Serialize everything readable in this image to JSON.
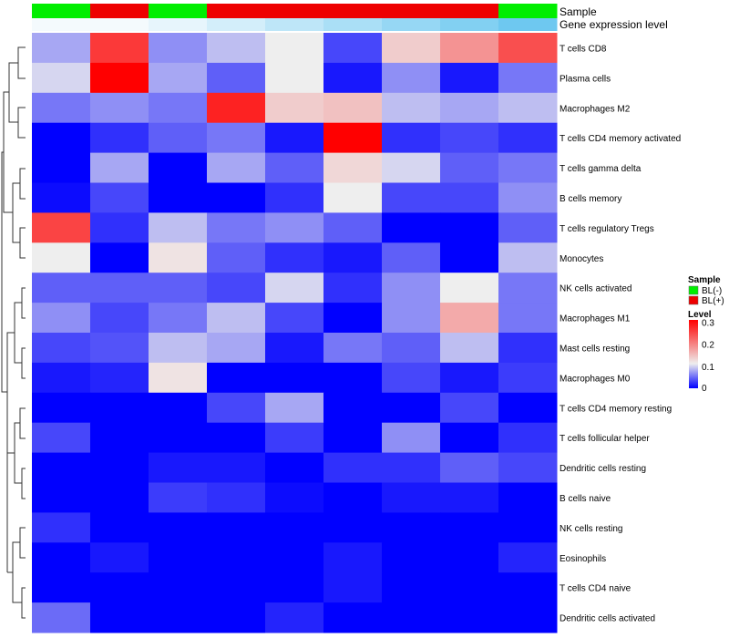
{
  "chart_data": {
    "type": "heatmap",
    "title": "",
    "row_labels": [
      "T cells CD8",
      "Plasma cells",
      "Macrophages M2",
      "T cells CD4 memory activated",
      "T cells gamma delta",
      "B cells memory",
      "T cells regulatory  Tregs",
      "Monocytes",
      "NK cells activated",
      "Macrophages M1",
      "Mast cells resting",
      "Macrophages M0",
      "T cells CD4 memory resting",
      "T cells follicular helper",
      "Dendritic cells resting",
      "B cells naive",
      "NK cells resting",
      "Eosinophils",
      "T cells CD4 naive",
      "Dendritic cells activated"
    ],
    "column_count": 9,
    "values": [
      [
        0.07,
        0.26,
        0.06,
        0.08,
        0.1,
        0.03,
        0.13,
        0.18,
        0.24
      ],
      [
        0.09,
        0.31,
        0.07,
        0.04,
        0.1,
        0.01,
        0.06,
        0.01,
        0.05
      ],
      [
        0.05,
        0.06,
        0.05,
        0.28,
        0.13,
        0.14,
        0.08,
        0.07,
        0.08
      ],
      [
        0.0,
        0.02,
        0.04,
        0.05,
        0.01,
        0.31,
        0.02,
        0.03,
        0.02
      ],
      [
        0.0,
        0.07,
        0.0,
        0.07,
        0.04,
        0.12,
        0.09,
        0.04,
        0.05
      ],
      [
        0.005,
        0.03,
        0.0,
        0.0,
        0.02,
        0.1,
        0.03,
        0.03,
        0.06
      ],
      [
        0.25,
        0.02,
        0.08,
        0.05,
        0.06,
        0.04,
        0.0,
        0.0,
        0.04
      ],
      [
        0.1,
        0.0,
        0.11,
        0.04,
        0.02,
        0.01,
        0.04,
        0.0,
        0.08
      ],
      [
        0.04,
        0.04,
        0.04,
        0.03,
        0.09,
        0.02,
        0.06,
        0.1,
        0.05
      ],
      [
        0.06,
        0.03,
        0.05,
        0.08,
        0.03,
        0.0,
        0.06,
        0.16,
        0.05
      ],
      [
        0.03,
        0.035,
        0.08,
        0.07,
        0.01,
        0.05,
        0.04,
        0.08,
        0.02
      ],
      [
        0.01,
        0.015,
        0.11,
        0.0,
        0.0,
        0.0,
        0.03,
        0.01,
        0.025
      ],
      [
        0.0,
        0.0,
        0.0,
        0.03,
        0.07,
        0.0,
        0.0,
        0.03,
        0.0
      ],
      [
        0.03,
        0.0,
        0.0,
        0.0,
        0.025,
        0.0,
        0.06,
        0.0,
        0.02
      ],
      [
        0.0,
        0.0,
        0.01,
        0.01,
        0.0,
        0.02,
        0.02,
        0.04,
        0.03
      ],
      [
        0.0,
        0.0,
        0.025,
        0.02,
        0.005,
        0.0,
        0.01,
        0.01,
        0.0
      ],
      [
        0.02,
        0.0,
        0.0,
        0.0,
        0.0,
        0.0,
        0.0,
        0.0,
        0.0
      ],
      [
        0.0,
        0.01,
        0.0,
        0.0,
        0.0,
        0.01,
        0.0,
        0.0,
        0.015
      ],
      [
        0.0,
        0.0,
        0.0,
        0.0,
        0.0,
        0.01,
        0.0,
        0.0,
        0.0
      ],
      [
        0.045,
        0.0,
        0.0,
        0.0,
        0.015,
        0.0,
        0.0,
        0.0,
        0.0
      ]
    ],
    "column_annotations": [
      {
        "name": "Sample",
        "values": [
          "BL(-)",
          "BL(+)",
          "BL(-)",
          "BL(+)",
          "BL(+)",
          "BL(+)",
          "BL(+)",
          "BL(+)",
          "BL(-)"
        ]
      },
      {
        "name": "Gene expression level",
        "values": [
          0.02,
          0.02,
          0.03,
          0.045,
          0.06,
          0.075,
          0.09,
          0.105,
          0.12
        ]
      }
    ],
    "sample_colors": {
      "BL(-)": "#00ee00",
      "BL(+)": "#ee0000"
    },
    "gene_expression_colors": {
      "low": "#f4fafd",
      "high": "#6ec8f0"
    },
    "color_scale": {
      "title": "Level",
      "min": 0,
      "max": 0.31,
      "ticks": [
        "0.3",
        "0.2",
        "0.1",
        "0"
      ],
      "tick_values": [
        0.3,
        0.2,
        0.1,
        0
      ],
      "low_color": "#0000ff",
      "mid_color": "#eeeeee",
      "high_color": "#ff0000",
      "mid_value": 0.1
    },
    "legend": {
      "sample_title": "Sample",
      "sample_entries": [
        "BL(-)",
        "BL(+)"
      ],
      "placement": "right"
    },
    "row_dendrogram": true,
    "grid": false
  }
}
